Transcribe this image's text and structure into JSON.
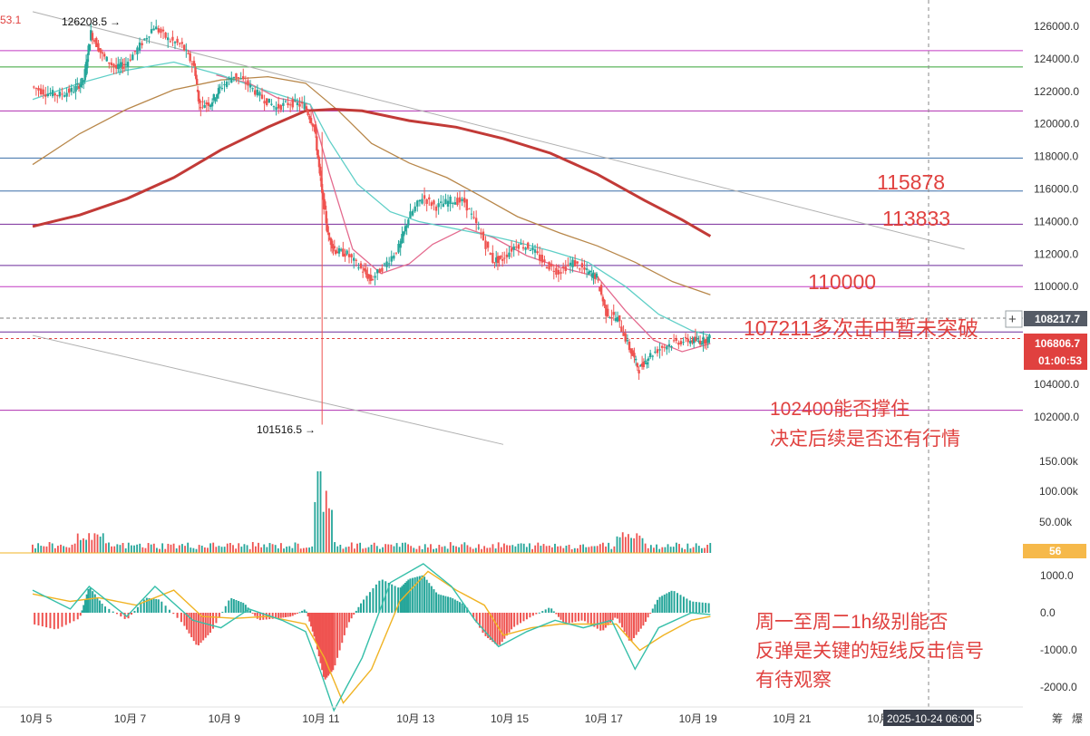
{
  "chart_data": {
    "type": "candlestick",
    "price_axis": {
      "ticks": [
        "126000.0",
        "124000.0",
        "122000.0",
        "120000.0",
        "118000.0",
        "116000.0",
        "114000.0",
        "112000.0",
        "110000.0",
        "104000.0",
        "102000.0"
      ],
      "tick_values": [
        126000,
        124000,
        122000,
        120000,
        118000,
        116000,
        114000,
        112000,
        110000,
        104000,
        102000
      ],
      "ylim": [
        99500,
        127600
      ]
    },
    "date_axis": {
      "ticks": [
        "10月 5",
        "10月 7",
        "10月 9",
        "10月 11",
        "10月 13",
        "10月 15",
        "10月 17",
        "10月 19",
        "10月 21",
        "10月 2",
        "5"
      ],
      "tick_days": [
        5,
        7,
        9,
        11,
        13,
        15,
        17,
        19,
        21,
        23,
        25
      ],
      "cursor_label": "2025-10-24 06:00"
    },
    "price_labels": {
      "crosshair": "108217.7",
      "last": "106806.7",
      "countdown": "01:00:53",
      "high_marker": "126208.5",
      "low_marker": "101516.5",
      "top_left_partial": "53.1"
    },
    "horizontal_levels": [
      {
        "value": 124500,
        "color": "#c239c2"
      },
      {
        "value": 123500,
        "color": "#36a336"
      },
      {
        "value": 120800,
        "color": "#b02fb0"
      },
      {
        "value": 117900,
        "color": "#3a6ea8"
      },
      {
        "value": 115878,
        "color": "#3a6ea8"
      },
      {
        "value": 113833,
        "color": "#7a2a9a"
      },
      {
        "value": 111300,
        "color": "#6a2a9a"
      },
      {
        "value": 110000,
        "color": "#c239c2"
      },
      {
        "value": 107211,
        "color": "#6a2a9a"
      },
      {
        "value": 102400,
        "color": "#b02fb0"
      }
    ],
    "trendlines": [
      {
        "from": [
          5.0,
          126900
        ],
        "to": [
          24.8,
          112300
        ],
        "color": "#b0b0b0"
      },
      {
        "from": [
          5.0,
          107000
        ],
        "to": [
          15.0,
          100300
        ],
        "color": "#b0b0b0"
      }
    ],
    "ohlc_series": [
      [
        5.0,
        122300
      ],
      [
        5.3,
        121900
      ],
      [
        5.6,
        121800
      ],
      [
        5.9,
        122100
      ],
      [
        6.1,
        122700
      ],
      [
        6.25,
        125600
      ],
      [
        6.5,
        124200
      ],
      [
        6.8,
        123400
      ],
      [
        7.0,
        123700
      ],
      [
        7.3,
        124800
      ],
      [
        7.6,
        126000
      ],
      [
        7.9,
        125200
      ],
      [
        8.2,
        124800
      ],
      [
        8.45,
        123500
      ],
      [
        8.55,
        121200
      ],
      [
        8.8,
        121300
      ],
      [
        9.0,
        122200
      ],
      [
        9.3,
        123000
      ],
      [
        9.6,
        122400
      ],
      [
        9.9,
        121600
      ],
      [
        10.2,
        121000
      ],
      [
        10.5,
        121300
      ],
      [
        10.8,
        121100
      ],
      [
        11.0,
        119800
      ],
      [
        11.15,
        116000
      ],
      [
        11.3,
        113000
      ],
      [
        11.45,
        112200
      ],
      [
        11.7,
        112000
      ],
      [
        12.0,
        111100
      ],
      [
        12.2,
        110400
      ],
      [
        12.5,
        111300
      ],
      [
        12.8,
        112400
      ],
      [
        13.0,
        114200
      ],
      [
        13.3,
        115500
      ],
      [
        13.6,
        114900
      ],
      [
        13.9,
        115300
      ],
      [
        14.2,
        115200
      ],
      [
        14.5,
        113500
      ],
      [
        14.8,
        111600
      ],
      [
        15.0,
        111700
      ],
      [
        15.3,
        112600
      ],
      [
        15.6,
        112400
      ],
      [
        15.9,
        111400
      ],
      [
        16.2,
        110900
      ],
      [
        16.5,
        111500
      ],
      [
        16.8,
        110900
      ],
      [
        17.0,
        110600
      ],
      [
        17.2,
        108400
      ],
      [
        17.45,
        108000
      ],
      [
        17.7,
        106200
      ],
      [
        17.9,
        104900
      ],
      [
        18.1,
        105700
      ],
      [
        18.4,
        106300
      ],
      [
        18.7,
        106600
      ],
      [
        19.0,
        106700
      ],
      [
        19.2,
        106650
      ],
      [
        19.4,
        106806
      ]
    ],
    "moving_averages": [
      {
        "color": "#e46a8e",
        "points": [
          [
            8.9,
            123000
          ],
          [
            9.6,
            122500
          ],
          [
            10.2,
            121600
          ],
          [
            10.9,
            121200
          ],
          [
            11.3,
            117000
          ],
          [
            11.8,
            112300
          ],
          [
            12.4,
            110800
          ],
          [
            13.0,
            111400
          ],
          [
            13.5,
            112600
          ],
          [
            14.2,
            113600
          ],
          [
            14.8,
            113000
          ],
          [
            15.5,
            111900
          ],
          [
            16.2,
            111200
          ],
          [
            17.0,
            110600
          ],
          [
            17.6,
            108500
          ],
          [
            18.2,
            106700
          ],
          [
            18.8,
            106000
          ],
          [
            19.4,
            106500
          ]
        ]
      },
      {
        "color": "#5fcfc7",
        "points": [
          [
            5.0,
            121500
          ],
          [
            6.0,
            122500
          ],
          [
            7.0,
            123300
          ],
          [
            8.0,
            123800
          ],
          [
            9.0,
            123000
          ],
          [
            10.0,
            122000
          ],
          [
            10.9,
            121200
          ],
          [
            11.3,
            119000
          ],
          [
            11.9,
            116300
          ],
          [
            12.6,
            114600
          ],
          [
            13.2,
            114000
          ],
          [
            13.9,
            113600
          ],
          [
            14.6,
            113200
          ],
          [
            15.2,
            112800
          ],
          [
            16.0,
            112200
          ],
          [
            16.8,
            111500
          ],
          [
            17.6,
            110000
          ],
          [
            18.3,
            108300
          ],
          [
            19.0,
            107300
          ],
          [
            19.4,
            107000
          ]
        ]
      },
      {
        "color": "#b8874a",
        "points": [
          [
            5.0,
            117500
          ],
          [
            6.0,
            119400
          ],
          [
            7.0,
            120900
          ],
          [
            8.0,
            122100
          ],
          [
            9.0,
            122700
          ],
          [
            10.0,
            122900
          ],
          [
            10.8,
            122500
          ],
          [
            11.5,
            120800
          ],
          [
            12.2,
            118800
          ],
          [
            13.0,
            117600
          ],
          [
            13.8,
            116700
          ],
          [
            14.5,
            115600
          ],
          [
            15.3,
            114300
          ],
          [
            16.2,
            113300
          ],
          [
            17.0,
            112500
          ],
          [
            17.8,
            111500
          ],
          [
            18.6,
            110300
          ],
          [
            19.4,
            109500
          ]
        ]
      },
      {
        "color": "#c23a37",
        "width": 3,
        "points": [
          [
            5.0,
            113700
          ],
          [
            6.0,
            114400
          ],
          [
            7.0,
            115400
          ],
          [
            8.0,
            116700
          ],
          [
            9.0,
            118400
          ],
          [
            10.0,
            119800
          ],
          [
            10.8,
            120800
          ],
          [
            11.4,
            120900
          ],
          [
            12.0,
            120800
          ],
          [
            13.0,
            120200
          ],
          [
            14.0,
            119800
          ],
          [
            15.0,
            119100
          ],
          [
            16.0,
            118200
          ],
          [
            17.0,
            116900
          ],
          [
            18.0,
            115300
          ],
          [
            18.8,
            114100
          ],
          [
            19.4,
            113100
          ]
        ]
      }
    ],
    "volume_axis": {
      "ticks": [
        "150.00k",
        "100.00k",
        "50.00k"
      ],
      "current_badge": "56"
    },
    "macd_axis": {
      "ticks": [
        "1000.0",
        "0.0",
        "-1000.0",
        "-2000.0"
      ]
    },
    "macd_histogram": [
      [
        5.0,
        -300
      ],
      [
        5.5,
        -450
      ],
      [
        6.0,
        -150
      ],
      [
        6.2,
        700
      ],
      [
        6.5,
        200
      ],
      [
        7.0,
        -200
      ],
      [
        7.4,
        400
      ],
      [
        7.7,
        350
      ],
      [
        8.2,
        -300
      ],
      [
        8.5,
        -900
      ],
      [
        8.8,
        -500
      ],
      [
        9.2,
        400
      ],
      [
        9.5,
        250
      ],
      [
        9.8,
        -200
      ],
      [
        10.2,
        -150
      ],
      [
        10.5,
        -100
      ],
      [
        10.8,
        100
      ],
      [
        11.0,
        -700
      ],
      [
        11.2,
        -1800
      ],
      [
        11.4,
        -1500
      ],
      [
        11.7,
        -300
      ],
      [
        12.0,
        300
      ],
      [
        12.4,
        900
      ],
      [
        12.8,
        650
      ],
      [
        13.0,
        900
      ],
      [
        13.3,
        1000
      ],
      [
        13.6,
        500
      ],
      [
        13.9,
        400
      ],
      [
        14.2,
        200
      ],
      [
        14.6,
        -600
      ],
      [
        14.9,
        -900
      ],
      [
        15.2,
        -400
      ],
      [
        15.6,
        -100
      ],
      [
        16.0,
        150
      ],
      [
        16.3,
        -300
      ],
      [
        16.7,
        -200
      ],
      [
        17.1,
        -500
      ],
      [
        17.4,
        -100
      ],
      [
        17.7,
        -800
      ],
      [
        18.0,
        -300
      ],
      [
        18.3,
        400
      ],
      [
        18.6,
        600
      ],
      [
        19.0,
        300
      ],
      [
        19.4,
        250
      ]
    ],
    "macd_lines": [
      {
        "color": "#f0b323",
        "points": [
          [
            5.0,
            500
          ],
          [
            5.8,
            300
          ],
          [
            6.4,
            400
          ],
          [
            7.2,
            200
          ],
          [
            8.0,
            600
          ],
          [
            8.6,
            -100
          ],
          [
            9.3,
            -150
          ],
          [
            10.0,
            -100
          ],
          [
            10.8,
            -300
          ],
          [
            11.2,
            -1200
          ],
          [
            11.6,
            -2400
          ],
          [
            12.2,
            -1500
          ],
          [
            12.8,
            300
          ],
          [
            13.4,
            1100
          ],
          [
            14.0,
            600
          ],
          [
            14.6,
            200
          ],
          [
            15.0,
            -600
          ],
          [
            15.6,
            -400
          ],
          [
            16.2,
            -300
          ],
          [
            16.8,
            -300
          ],
          [
            17.4,
            -300
          ],
          [
            17.9,
            -1000
          ],
          [
            18.4,
            -600
          ],
          [
            19.0,
            -200
          ],
          [
            19.4,
            -100
          ]
        ]
      },
      {
        "color": "#35bfa9",
        "points": [
          [
            5.0,
            600
          ],
          [
            5.8,
            100
          ],
          [
            6.2,
            700
          ],
          [
            7.0,
            -100
          ],
          [
            7.6,
            700
          ],
          [
            8.4,
            -200
          ],
          [
            9.0,
            -400
          ],
          [
            9.6,
            100
          ],
          [
            10.3,
            -200
          ],
          [
            10.8,
            -500
          ],
          [
            11.1,
            -1500
          ],
          [
            11.4,
            -2600
          ],
          [
            12.0,
            -1200
          ],
          [
            12.6,
            800
          ],
          [
            13.3,
            1300
          ],
          [
            13.9,
            700
          ],
          [
            14.4,
            -200
          ],
          [
            14.9,
            -900
          ],
          [
            15.5,
            -500
          ],
          [
            16.1,
            -200
          ],
          [
            16.7,
            -400
          ],
          [
            17.3,
            -200
          ],
          [
            17.8,
            -1500
          ],
          [
            18.3,
            -400
          ],
          [
            19.0,
            0
          ],
          [
            19.4,
            -50
          ]
        ]
      }
    ],
    "annotations": {
      "level_115878": "115878",
      "level_113833": "113833",
      "level_110000": "110000",
      "level_107211": "107211多次击中暂未突破",
      "level_102400_line1": "102400能否撑住",
      "level_102400_line2": "决定后续是否还有行情",
      "macd_note_line1": "周一至周二1h级别能否",
      "macd_note_line2": "反弹是关键的短线反击信号",
      "macd_note_line3": "有待观察"
    },
    "corner_labels": {
      "a": "筹",
      "b": "爆"
    }
  }
}
